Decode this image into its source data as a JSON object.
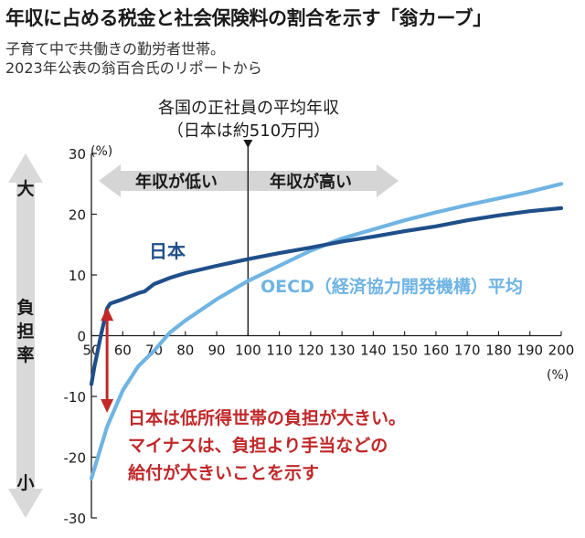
{
  "header": {
    "title": "年収に占める税金と社会保険料の割合を示す「翁カーブ」",
    "subtitle_lines": [
      "子育て中で共働きの勤労者世帯。",
      "2023年公表の翁百合氏のリポートから"
    ]
  },
  "colors": {
    "japan": "#1f4f8a",
    "oecd": "#6fb4e3",
    "annotation_red": "#c0282a",
    "band_arrow": "#d5d5d5",
    "burden_arrow": "#d9d9d9"
  },
  "chart_data": {
    "type": "line",
    "y_unit_label": "(%)",
    "x_unit_label": "(%)",
    "xlim": [
      50,
      200
    ],
    "ylim": [
      -30,
      30
    ],
    "x_ticks": [
      50,
      60,
      70,
      80,
      90,
      100,
      110,
      120,
      130,
      140,
      150,
      160,
      170,
      180,
      190,
      200
    ],
    "y_ticks": [
      -30,
      -20,
      -10,
      0,
      10,
      20,
      30
    ],
    "grid": false,
    "series": [
      {
        "name": "日本",
        "color": "#1f4f8a",
        "points": [
          [
            50,
            -8
          ],
          [
            51,
            -5
          ],
          [
            53,
            0
          ],
          [
            55,
            4.5
          ],
          [
            56,
            5.3
          ],
          [
            60,
            6
          ],
          [
            65,
            7
          ],
          [
            67,
            7.3
          ],
          [
            70,
            8.5
          ],
          [
            75,
            9.5
          ],
          [
            80,
            10.3
          ],
          [
            90,
            11.5
          ],
          [
            100,
            12.6
          ],
          [
            110,
            13.6
          ],
          [
            120,
            14.5
          ],
          [
            130,
            15.5
          ],
          [
            140,
            16.3
          ],
          [
            150,
            17.2
          ],
          [
            160,
            18
          ],
          [
            170,
            19
          ],
          [
            180,
            19.8
          ],
          [
            190,
            20.5
          ],
          [
            200,
            21
          ]
        ]
      },
      {
        "name": "OECD（経済協力開発機構）平均",
        "color": "#6fb4e3",
        "points": [
          [
            50,
            -23.5
          ],
          [
            55,
            -15
          ],
          [
            60,
            -9
          ],
          [
            65,
            -5
          ],
          [
            70,
            -2.5
          ],
          [
            75,
            0.5
          ],
          [
            80,
            2.5
          ],
          [
            90,
            6
          ],
          [
            100,
            9
          ],
          [
            110,
            11.5
          ],
          [
            120,
            14
          ],
          [
            130,
            16
          ],
          [
            140,
            17.5
          ],
          [
            150,
            19
          ],
          [
            160,
            20.3
          ],
          [
            170,
            21.5
          ],
          [
            180,
            22.6
          ],
          [
            190,
            23.7
          ],
          [
            200,
            25
          ]
        ]
      }
    ],
    "reference_line": {
      "x": 100,
      "label_lines": [
        "各国の正社員の平均年収",
        "（日本は約510万円）"
      ]
    },
    "income_band": {
      "left_label": "年収が低い",
      "right_label": "年収が高い"
    },
    "burden_axis": {
      "top_label": "大",
      "middle_label": "負担率",
      "bottom_label": "小"
    },
    "annotation": {
      "lines": [
        "日本は低所得世帯の負担が大きい。",
        "マイナスは、負担より手当などの",
        "給付が大きいことを示す"
      ],
      "arrow_x": 55,
      "arrow_from": 5.3,
      "arrow_to": -13
    }
  }
}
